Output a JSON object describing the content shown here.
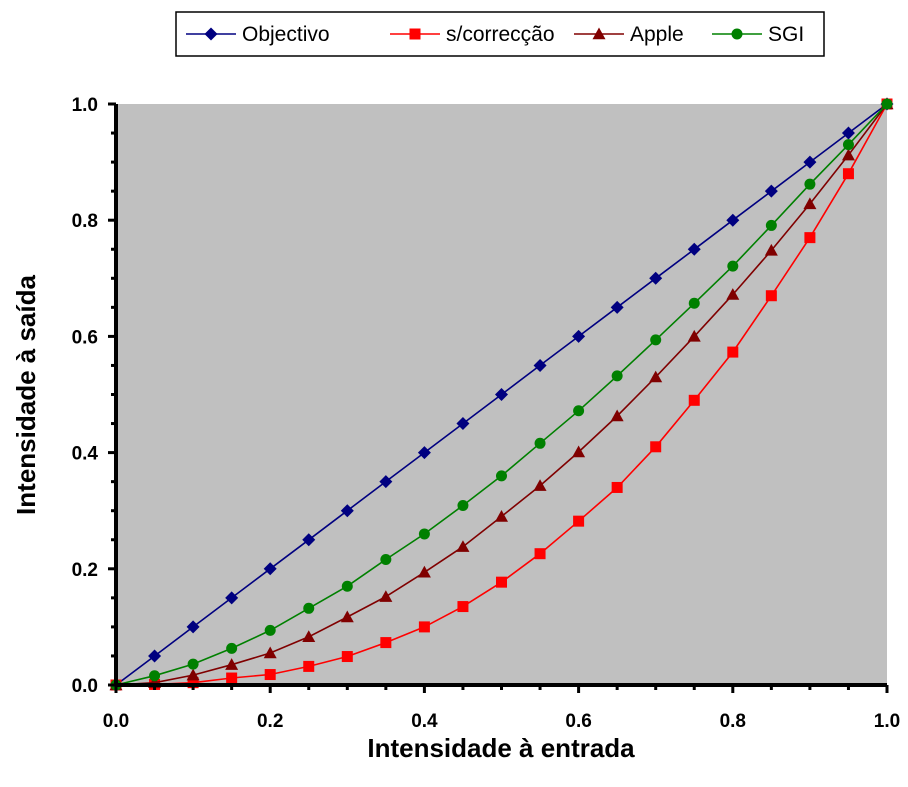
{
  "chart_data": {
    "type": "line",
    "xlabel": "Intensidade à entrada",
    "ylabel": "Intensidade à saída",
    "xlim": [
      0,
      1
    ],
    "ylim": [
      0,
      1
    ],
    "x_ticks": [
      "0.0",
      "0.2",
      "0.4",
      "0.6",
      "0.8",
      "1.0"
    ],
    "y_ticks": [
      "0.0",
      "0.2",
      "0.4",
      "0.6",
      "0.8",
      "1.0"
    ],
    "grid": false,
    "plot_background": "#c0c0c0",
    "legend_position": "top-center",
    "x": [
      0,
      0.05,
      0.1,
      0.15,
      0.2,
      0.25,
      0.3,
      0.35,
      0.4,
      0.45,
      0.5,
      0.55,
      0.6,
      0.65,
      0.7,
      0.75,
      0.8,
      0.85,
      0.9,
      0.95,
      1.0
    ],
    "series": [
      {
        "name": "Objectivo",
        "color": "#000080",
        "marker": "diamond",
        "values": [
          0,
          0.05,
          0.1,
          0.15,
          0.2,
          0.25,
          0.3,
          0.35,
          0.4,
          0.45,
          0.5,
          0.55,
          0.6,
          0.65,
          0.7,
          0.75,
          0.8,
          0.85,
          0.9,
          0.95,
          1.0
        ]
      },
      {
        "name": "s/correcção",
        "color": "#ff0000",
        "marker": "square",
        "values": [
          0,
          0.001,
          0.004,
          0.012,
          0.018,
          0.032,
          0.049,
          0.073,
          0.1,
          0.135,
          0.177,
          0.226,
          0.282,
          0.34,
          0.41,
          0.49,
          0.573,
          0.67,
          0.77,
          0.88,
          1.0
        ]
      },
      {
        "name": "Apple",
        "color": "#800000",
        "marker": "triangle",
        "values": [
          0,
          0.004,
          0.017,
          0.035,
          0.055,
          0.083,
          0.117,
          0.152,
          0.194,
          0.238,
          0.29,
          0.343,
          0.401,
          0.463,
          0.53,
          0.6,
          0.672,
          0.748,
          0.828,
          0.912,
          1.0
        ]
      },
      {
        "name": "SGI",
        "color": "#008000",
        "marker": "circle",
        "values": [
          0,
          0.016,
          0.036,
          0.063,
          0.094,
          0.132,
          0.17,
          0.216,
          0.26,
          0.309,
          0.36,
          0.416,
          0.472,
          0.532,
          0.594,
          0.657,
          0.721,
          0.791,
          0.862,
          0.93,
          1.0
        ]
      }
    ]
  }
}
